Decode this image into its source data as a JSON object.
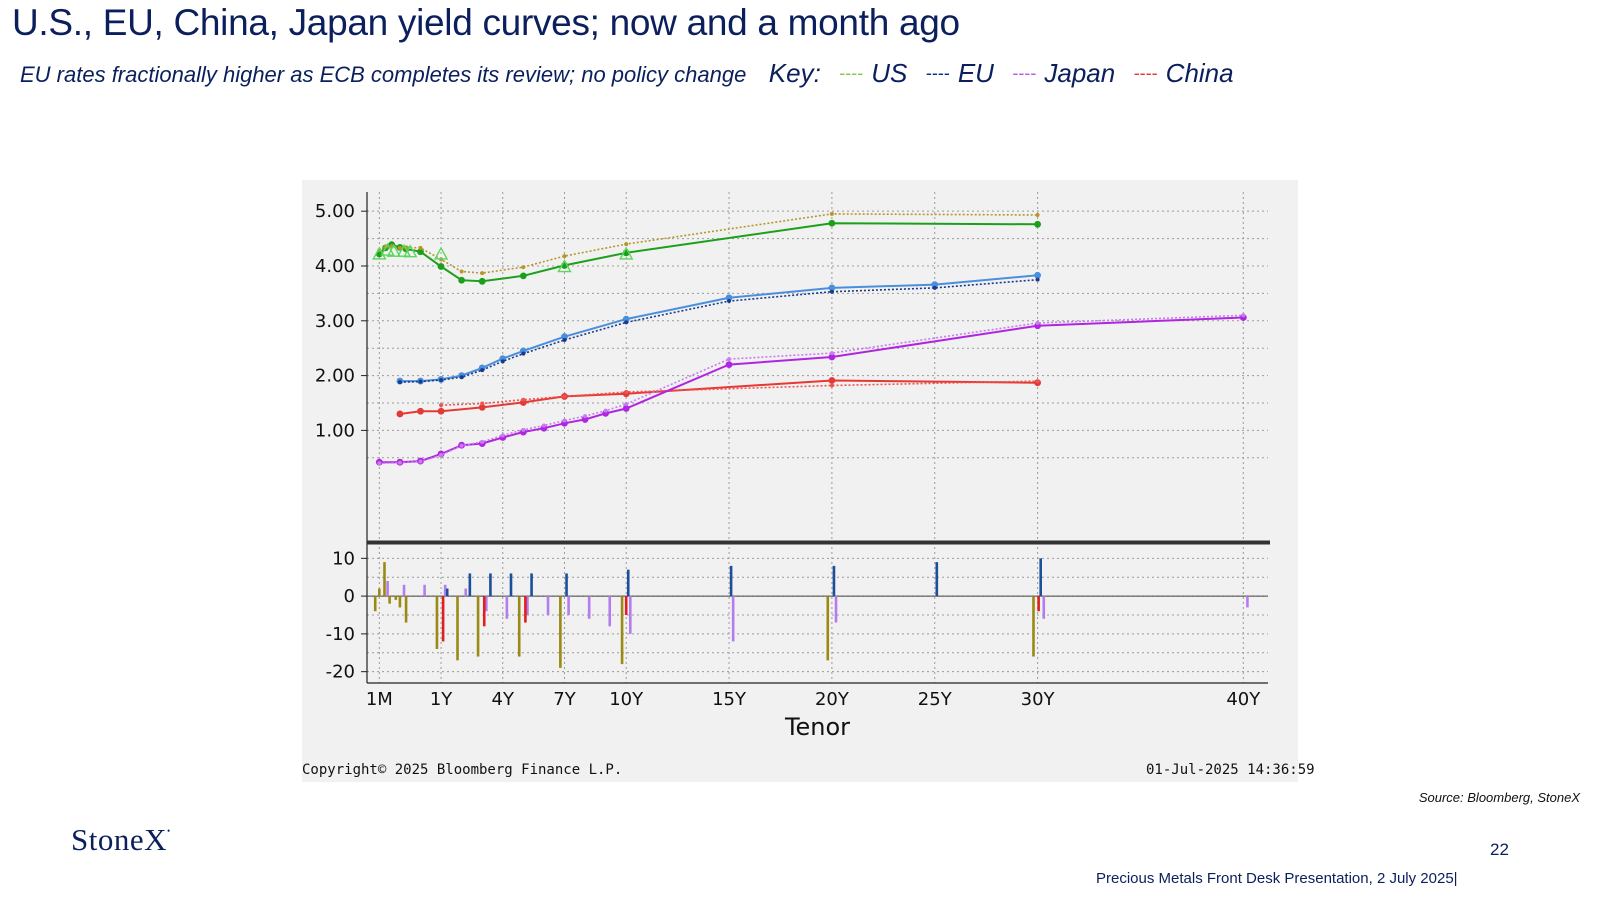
{
  "slide": {
    "title": "U.S., EU, China, Japan yield curves; now and a month ago",
    "subtitle": "EU rates fractionally higher as ECB completes its review; no policy change",
    "key_label": "Key:",
    "key": [
      {
        "dash": "----",
        "name": "US",
        "color": "#8bc34a"
      },
      {
        "dash": "----",
        "name": "EU",
        "color": "#0b2f8a"
      },
      {
        "dash": "----",
        "name": "Japan",
        "color": "#b25cf0"
      },
      {
        "dash": "----",
        "name": "China",
        "color": "#e53935"
      }
    ],
    "source": "Source: Bloomberg, StoneX",
    "logo_text": "StoneX",
    "logo_mark": "•",
    "page_number": "22",
    "footer": "Precious Metals Front Desk Presentation, 2 July 2025|"
  },
  "terminal": {
    "copyright": "Copyright© 2025 Bloomberg Finance L.P.",
    "timestamp": "01-Jul-2025 14:36:59"
  },
  "chart_data": {
    "type": "line",
    "xlabel": "Tenor",
    "x_tick_labels": [
      "1M",
      "1Y",
      "4Y",
      "7Y",
      "10Y",
      "15Y",
      "20Y",
      "25Y",
      "30Y",
      "40Y"
    ],
    "x_tick_values": [
      0,
      3,
      6,
      9,
      12,
      17,
      22,
      27,
      32,
      42
    ],
    "x_range": [
      -0.6,
      43.2
    ],
    "top_panel": {
      "y_ticks": [
        "5.00",
        "4.00",
        "3.00",
        "2.00",
        "1.00"
      ],
      "y_tick_values": [
        5,
        4,
        3,
        2,
        1
      ],
      "ylim": [
        -1.0,
        5.35
      ],
      "series": [
        {
          "color": "#1ca01c",
          "dash": false,
          "marker": "dot",
          "points": [
            [
              0,
              4.22
            ],
            [
              0.3,
              4.33
            ],
            [
              0.6,
              4.39
            ],
            [
              1,
              4.34
            ],
            [
              1.3,
              4.31
            ],
            [
              2,
              4.26
            ],
            [
              3,
              3.99
            ],
            [
              4,
              3.74
            ],
            [
              5,
              3.72
            ],
            [
              7,
              3.82
            ],
            [
              9,
              4.01
            ],
            [
              12,
              4.24
            ],
            [
              22,
              4.78
            ],
            [
              32,
              4.76
            ]
          ]
        },
        {
          "color": "#b8962a",
          "dash": true,
          "marker": "star",
          "points": [
            [
              0,
              4.29
            ],
            [
              0.3,
              4.35
            ],
            [
              0.6,
              4.36
            ],
            [
              1,
              4.33
            ],
            [
              1.3,
              4.34
            ],
            [
              2,
              4.33
            ],
            [
              3,
              4.12
            ],
            [
              4,
              3.9
            ],
            [
              5,
              3.87
            ],
            [
              7,
              3.98
            ],
            [
              9,
              4.18
            ],
            [
              12,
              4.4
            ],
            [
              22,
              4.95
            ],
            [
              32,
              4.93
            ]
          ]
        },
        {
          "color": "#4a8fdc",
          "dash": false,
          "marker": "dot",
          "points": [
            [
              1,
              1.9
            ],
            [
              2,
              1.9
            ],
            [
              3,
              1.93
            ],
            [
              4,
              2.0
            ],
            [
              5,
              2.14
            ],
            [
              6,
              2.31
            ],
            [
              7,
              2.45
            ],
            [
              9,
              2.71
            ],
            [
              12,
              3.03
            ],
            [
              17,
              3.42
            ],
            [
              22,
              3.6
            ],
            [
              27,
              3.66
            ],
            [
              32,
              3.83
            ]
          ]
        },
        {
          "color": "#1a3a8a",
          "dash": true,
          "marker": "star",
          "points": [
            [
              1,
              1.88
            ],
            [
              2,
              1.89
            ],
            [
              3,
              1.92
            ],
            [
              4,
              1.97
            ],
            [
              5,
              2.1
            ],
            [
              6,
              2.26
            ],
            [
              7,
              2.4
            ],
            [
              9,
              2.65
            ],
            [
              12,
              2.97
            ],
            [
              17,
              3.36
            ],
            [
              22,
              3.53
            ],
            [
              27,
              3.6
            ],
            [
              32,
              3.75
            ]
          ]
        },
        {
          "color": "#e53935",
          "dash": false,
          "marker": "dot",
          "points": [
            [
              1,
              1.3
            ],
            [
              2,
              1.35
            ],
            [
              3,
              1.35
            ],
            [
              5,
              1.42
            ],
            [
              7,
              1.51
            ],
            [
              9,
              1.62
            ],
            [
              12,
              1.67
            ],
            [
              22,
              1.91
            ],
            [
              32,
              1.87
            ]
          ]
        },
        {
          "color": "#ef5350",
          "dash": true,
          "marker": "star",
          "points": [
            [
              3,
              1.46
            ],
            [
              5,
              1.49
            ],
            [
              7,
              1.56
            ],
            [
              9,
              1.62
            ],
            [
              12,
              1.7
            ],
            [
              22,
              1.82
            ],
            [
              32,
              1.9
            ]
          ]
        },
        {
          "color": "#b026e0",
          "dash": false,
          "marker": "dot",
          "points": [
            [
              0,
              0.42
            ],
            [
              1,
              0.42
            ],
            [
              2,
              0.44
            ],
            [
              3,
              0.57
            ],
            [
              4,
              0.73
            ],
            [
              5,
              0.76
            ],
            [
              6,
              0.87
            ],
            [
              7,
              0.97
            ],
            [
              8,
              1.04
            ],
            [
              9,
              1.13
            ],
            [
              10,
              1.2
            ],
            [
              11,
              1.31
            ],
            [
              12,
              1.4
            ],
            [
              17,
              2.2
            ],
            [
              22,
              2.34
            ],
            [
              32,
              2.91
            ],
            [
              42,
              3.06
            ]
          ]
        },
        {
          "color": "#c77cf2",
          "dash": true,
          "marker": "star",
          "points": [
            [
              0,
              0.4
            ],
            [
              1,
              0.41
            ],
            [
              2,
              0.43
            ],
            [
              3,
              0.55
            ],
            [
              4,
              0.72
            ],
            [
              5,
              0.79
            ],
            [
              6,
              0.91
            ],
            [
              7,
              1.01
            ],
            [
              8,
              1.09
            ],
            [
              9,
              1.18
            ],
            [
              10,
              1.26
            ],
            [
              11,
              1.36
            ],
            [
              12,
              1.48
            ],
            [
              17,
              2.3
            ],
            [
              22,
              2.41
            ],
            [
              32,
              2.96
            ],
            [
              42,
              3.1
            ]
          ]
        }
      ],
      "triangle_markers": [
        [
          0,
          4.22
        ],
        [
          0.4,
          4.29
        ],
        [
          0.7,
          4.27
        ],
        [
          1.2,
          4.27
        ],
        [
          1.5,
          4.26
        ],
        [
          3,
          4.22
        ],
        [
          9,
          3.99
        ],
        [
          12,
          4.22
        ]
      ]
    },
    "bottom_panel": {
      "y_ticks": [
        "10",
        "0",
        "-10",
        "-20"
      ],
      "y_tick_values": [
        10,
        0,
        -10,
        -20
      ],
      "ylim": [
        -23,
        13
      ],
      "bars": [
        {
          "x": -0.2,
          "v": -4,
          "color": "#9a8a14"
        },
        {
          "x": 0,
          "v": 2,
          "color": "#9a8a14"
        },
        {
          "x": 0.25,
          "v": 9,
          "color": "#9a8a14"
        },
        {
          "x": 0.5,
          "v": -2,
          "color": "#9a8a14"
        },
        {
          "x": 0.8,
          "v": -1,
          "color": "#9a8a14"
        },
        {
          "x": 1,
          "v": -3,
          "color": "#9a8a14"
        },
        {
          "x": 1.3,
          "v": -7,
          "color": "#9a8a14"
        },
        {
          "x": 2.8,
          "v": -14,
          "color": "#9a8a14"
        },
        {
          "x": 3.8,
          "v": -17,
          "color": "#9a8a14"
        },
        {
          "x": 4.8,
          "v": -16,
          "color": "#9a8a14"
        },
        {
          "x": 6.8,
          "v": -16,
          "color": "#9a8a14"
        },
        {
          "x": 8.8,
          "v": -19,
          "color": "#9a8a14"
        },
        {
          "x": 11.8,
          "v": -18,
          "color": "#9a8a14"
        },
        {
          "x": 21.8,
          "v": -17,
          "color": "#9a8a14"
        },
        {
          "x": 31.8,
          "v": -16,
          "color": "#9a8a14"
        },
        {
          "x": 0.4,
          "v": 4,
          "color": "#b57cf0"
        },
        {
          "x": 1.2,
          "v": 3,
          "color": "#b57cf0"
        },
        {
          "x": 2.2,
          "v": 3,
          "color": "#b57cf0"
        },
        {
          "x": 3.2,
          "v": 3,
          "color": "#b57cf0"
        },
        {
          "x": 4.2,
          "v": 2,
          "color": "#b57cf0"
        },
        {
          "x": 5.2,
          "v": -4,
          "color": "#b57cf0"
        },
        {
          "x": 6.2,
          "v": -6,
          "color": "#b57cf0"
        },
        {
          "x": 7.2,
          "v": -5,
          "color": "#b57cf0"
        },
        {
          "x": 8.2,
          "v": -5,
          "color": "#b57cf0"
        },
        {
          "x": 9.2,
          "v": -5,
          "color": "#b57cf0"
        },
        {
          "x": 10.2,
          "v": -6,
          "color": "#b57cf0"
        },
        {
          "x": 11.2,
          "v": -8,
          "color": "#b57cf0"
        },
        {
          "x": 12.2,
          "v": -10,
          "color": "#b57cf0"
        },
        {
          "x": 17.2,
          "v": -12,
          "color": "#b57cf0"
        },
        {
          "x": 22.2,
          "v": -7,
          "color": "#b57cf0"
        },
        {
          "x": 32.3,
          "v": -6,
          "color": "#b57cf0"
        },
        {
          "x": 42.2,
          "v": -3,
          "color": "#b57cf0"
        },
        {
          "x": 3.1,
          "v": -12,
          "color": "#e02020"
        },
        {
          "x": 5.1,
          "v": -8,
          "color": "#e02020"
        },
        {
          "x": 7.1,
          "v": -7,
          "color": "#e02020"
        },
        {
          "x": 12.0,
          "v": -5,
          "color": "#e02020"
        },
        {
          "x": 32.05,
          "v": -4,
          "color": "#e02020"
        },
        {
          "x": 3.3,
          "v": 2,
          "color": "#1a4f9a"
        },
        {
          "x": 4.4,
          "v": 6,
          "color": "#1a4f9a"
        },
        {
          "x": 5.4,
          "v": 6,
          "color": "#1a4f9a"
        },
        {
          "x": 6.4,
          "v": 6,
          "color": "#1a4f9a"
        },
        {
          "x": 7.4,
          "v": 6,
          "color": "#1a4f9a"
        },
        {
          "x": 9.1,
          "v": 6,
          "color": "#1a4f9a"
        },
        {
          "x": 12.1,
          "v": 7,
          "color": "#1a4f9a"
        },
        {
          "x": 17.1,
          "v": 8,
          "color": "#1a4f9a"
        },
        {
          "x": 22.1,
          "v": 8,
          "color": "#1a4f9a"
        },
        {
          "x": 27.1,
          "v": 9,
          "color": "#1a4f9a"
        },
        {
          "x": 32.15,
          "v": 10,
          "color": "#1a4f9a"
        }
      ]
    }
  }
}
